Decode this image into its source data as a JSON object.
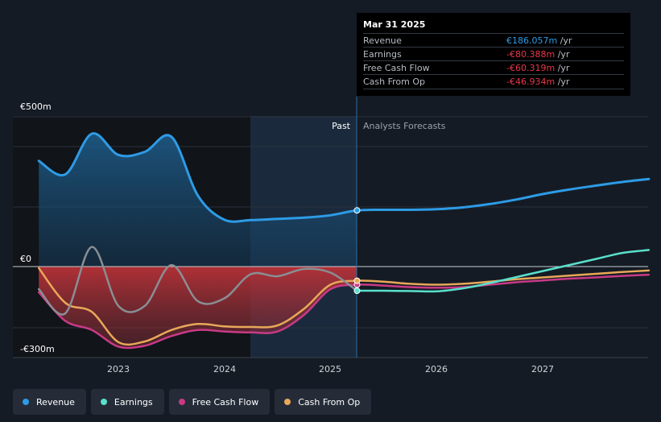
{
  "chart_data": {
    "type": "line",
    "y_tick_labels": [
      "€500m",
      "€0",
      "-€300m"
    ],
    "x_tick_labels": [
      "2023",
      "2024",
      "2025",
      "2026",
      "2027"
    ],
    "ylim": [
      -300,
      500
    ],
    "past_label": "Past",
    "forecast_label": "Analysts Forecasts",
    "colors": {
      "Revenue": "#2d9be6",
      "Earnings": "#59e0cd",
      "Free Cash Flow": "#c73a86",
      "Cash From Op": "#e8a858",
      "past_fill_red": "#b83238"
    },
    "series": [
      {
        "name": "Revenue",
        "x": [
          2022.25,
          2022.5,
          2022.75,
          2023.0,
          2023.25,
          2023.5,
          2023.75,
          2024.0,
          2024.25,
          2024.5,
          2024.75,
          2025.0,
          2025.25,
          2025.5,
          2025.75,
          2026.0,
          2026.25,
          2026.5,
          2026.75,
          2027.0,
          2027.25,
          2027.5,
          2027.75,
          2028.0
        ],
        "values": [
          350,
          305,
          440,
          370,
          380,
          430,
          235,
          155,
          154,
          158,
          162,
          170,
          186,
          188,
          188,
          190,
          196,
          207,
          222,
          240,
          255,
          268,
          280,
          290
        ]
      },
      {
        "name": "Earnings",
        "x": [
          2022.25,
          2022.5,
          2022.75,
          2023.0,
          2023.25,
          2023.5,
          2023.75,
          2024.0,
          2024.25,
          2024.5,
          2024.75,
          2025.0,
          2025.25,
          2025.5,
          2025.75,
          2026.0,
          2026.25,
          2026.5,
          2026.75,
          2027.0,
          2027.25,
          2027.5,
          2027.75,
          2028.0
        ],
        "values": [
          -75,
          -155,
          65,
          -130,
          -130,
          5,
          -115,
          -105,
          -25,
          -32,
          -8,
          -20,
          -80,
          -80,
          -81,
          -82,
          -72,
          -55,
          -35,
          -15,
          5,
          25,
          45,
          55
        ]
      },
      {
        "name": "Free Cash Flow",
        "x": [
          2022.25,
          2022.5,
          2022.75,
          2023.0,
          2023.25,
          2023.5,
          2023.75,
          2024.0,
          2024.25,
          2024.5,
          2024.75,
          2025.0,
          2025.25,
          2025.5,
          2025.75,
          2026.0,
          2026.25,
          2026.5,
          2026.75,
          2027.0,
          2027.25,
          2027.5,
          2027.75,
          2028.0
        ],
        "values": [
          -85,
          -180,
          -210,
          -265,
          -262,
          -230,
          -210,
          -215,
          -218,
          -215,
          -160,
          -75,
          -60,
          -63,
          -68,
          -70,
          -68,
          -60,
          -52,
          -46,
          -40,
          -36,
          -31,
          -27
        ]
      },
      {
        "name": "Cash From Op",
        "x": [
          2022.25,
          2022.5,
          2022.75,
          2023.0,
          2023.25,
          2023.5,
          2023.75,
          2024.0,
          2024.25,
          2024.5,
          2024.75,
          2025.0,
          2025.25,
          2025.5,
          2025.75,
          2026.0,
          2026.25,
          2026.5,
          2026.75,
          2027.0,
          2027.25,
          2027.5,
          2027.75,
          2028.0
        ],
        "values": [
          -5,
          -120,
          -150,
          -250,
          -248,
          -210,
          -190,
          -198,
          -200,
          -195,
          -140,
          -60,
          -47,
          -50,
          -57,
          -60,
          -57,
          -50,
          -42,
          -36,
          -30,
          -24,
          -18,
          -13
        ]
      }
    ]
  },
  "tooltip": {
    "date": "Mar 31 2025",
    "rows": [
      {
        "label": "Revenue",
        "value": "€186.057m",
        "unit": "/yr",
        "color": "#2d9be6"
      },
      {
        "label": "Earnings",
        "value": "-€80.388m",
        "unit": "/yr",
        "color": "#e8384a"
      },
      {
        "label": "Free Cash Flow",
        "value": "-€60.319m",
        "unit": "/yr",
        "color": "#e8384a"
      },
      {
        "label": "Cash From Op",
        "value": "-€46.934m",
        "unit": "/yr",
        "color": "#e8384a"
      }
    ]
  },
  "legend": [
    {
      "label": "Revenue",
      "color": "#2d9be6"
    },
    {
      "label": "Earnings",
      "color": "#59e0cd"
    },
    {
      "label": "Free Cash Flow",
      "color": "#c73a86"
    },
    {
      "label": "Cash From Op",
      "color": "#e8a858"
    }
  ]
}
